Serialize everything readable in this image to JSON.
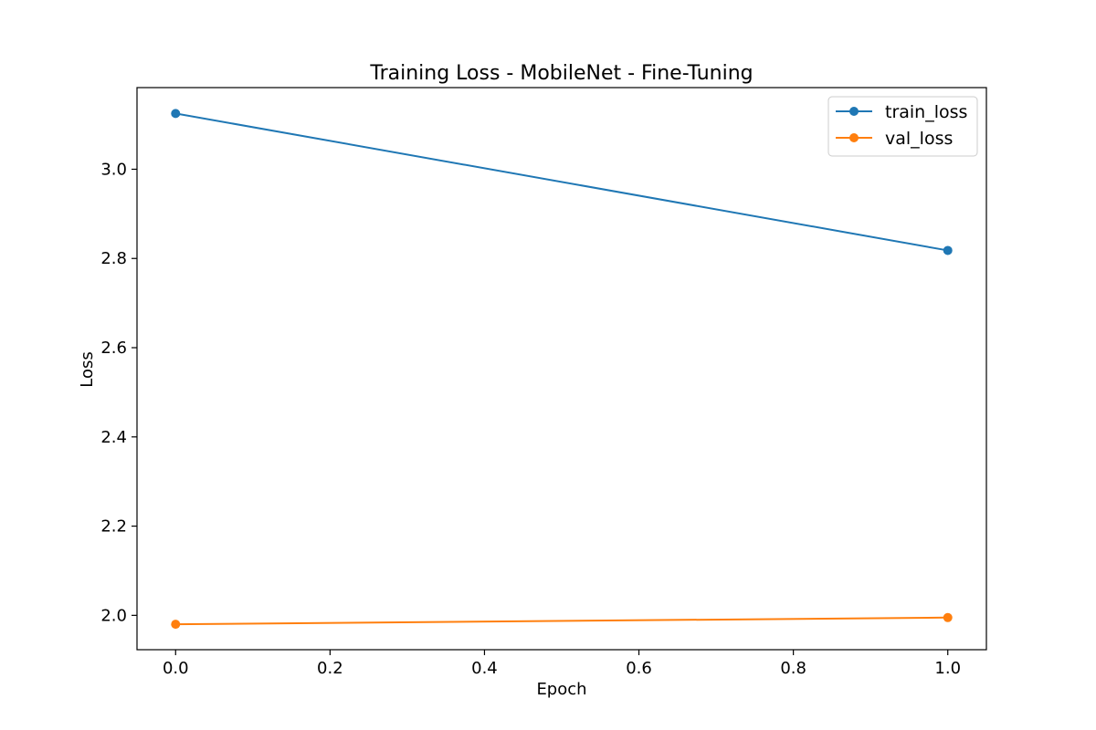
{
  "chart_data": {
    "type": "line",
    "title": "Training Loss - MobileNet - Fine-Tuning",
    "xlabel": "Epoch",
    "ylabel": "Loss",
    "x": [
      0,
      1
    ],
    "xlim": [
      -0.05,
      1.05
    ],
    "ylim": [
      1.923,
      3.183
    ],
    "xticks": [
      0.0,
      0.2,
      0.4,
      0.6,
      0.8,
      1.0
    ],
    "xtick_labels": [
      "0.0",
      "0.2",
      "0.4",
      "0.6",
      "0.8",
      "1.0"
    ],
    "yticks": [
      2.0,
      2.2,
      2.4,
      2.6,
      2.8,
      3.0
    ],
    "ytick_labels": [
      "2.0",
      "2.2",
      "2.4",
      "2.6",
      "2.8",
      "3.0"
    ],
    "grid": false,
    "legend_position": "top-right",
    "series": [
      {
        "name": "train_loss",
        "color": "#1f77b4",
        "marker": "circle",
        "values": [
          3.125,
          2.818
        ]
      },
      {
        "name": "val_loss",
        "color": "#ff7f0e",
        "marker": "circle",
        "values": [
          1.98,
          1.995
        ]
      }
    ]
  }
}
